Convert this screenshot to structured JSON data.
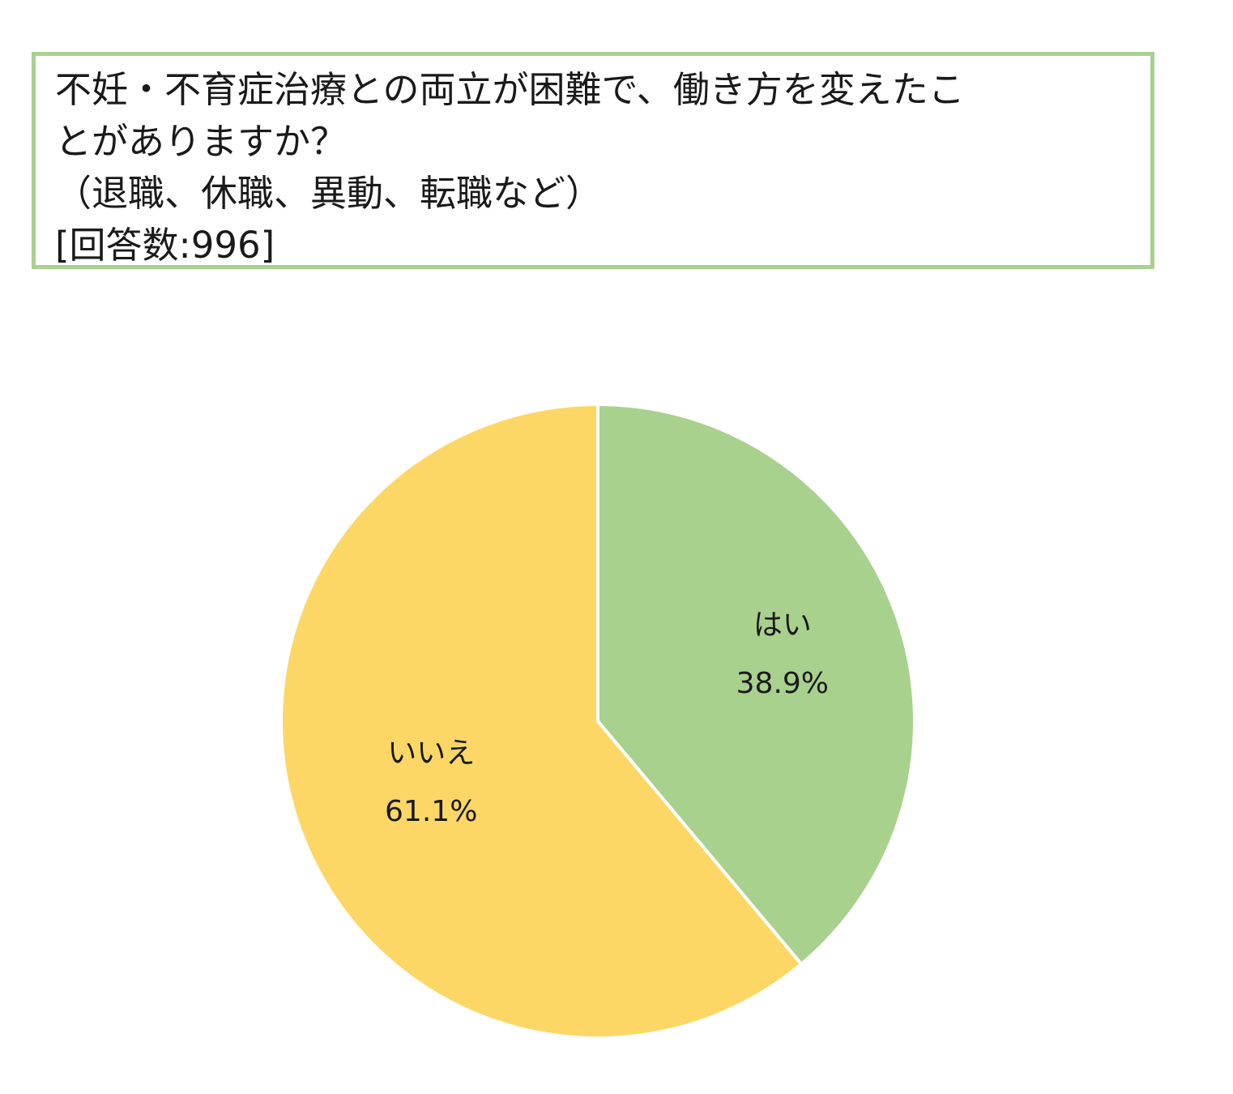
{
  "title": {
    "line1": "不妊・不育症治療との両立が困難で、働き方を変えたこ",
    "line2": "とがありますか？",
    "line3": "（退職、休職、異動、転職など）",
    "line4": "[回答数:996]"
  },
  "chart_data": {
    "type": "pie",
    "start_angle_deg": 0,
    "direction": "clockwise",
    "slices": [
      {
        "label": "はい",
        "value": 38.9,
        "value_label": "38.9%",
        "color": "#a9d18e"
      },
      {
        "label": "いいえ",
        "value": 61.1,
        "value_label": "61.1%",
        "color": "#fdd766"
      }
    ],
    "slice_border_color": "#ffffff",
    "legend": "none"
  }
}
